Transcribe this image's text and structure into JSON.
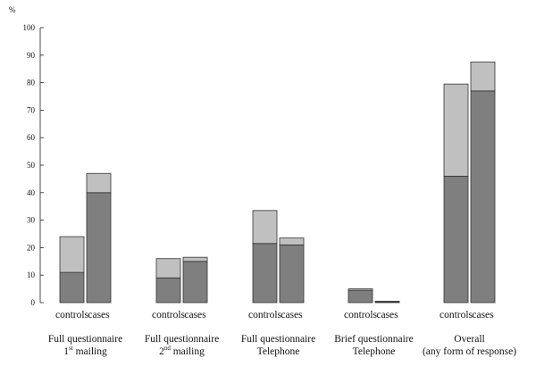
{
  "chart_data": {
    "type": "bar",
    "stacked": true,
    "ylabel": "%",
    "ylim": [
      0,
      100
    ],
    "yticks": [
      0,
      10,
      20,
      30,
      40,
      50,
      60,
      70,
      80,
      90,
      100
    ],
    "grid": false,
    "colors": {
      "lower": "#7f7f7f",
      "upper": "#c0c0c0",
      "edge": "#333333"
    },
    "groups": [
      {
        "label_lines": [
          {
            "text": "Full questionnaire"
          },
          {
            "text": "1",
            "sup": "st",
            "tail": " mailing"
          }
        ],
        "bars": [
          {
            "label": "controls",
            "lower": 11,
            "total": 24
          },
          {
            "label": "cases",
            "lower": 40,
            "total": 47
          }
        ]
      },
      {
        "label_lines": [
          {
            "text": "Full questionnaire"
          },
          {
            "text": "2",
            "sup": "nd",
            "tail": " mailing"
          }
        ],
        "bars": [
          {
            "label": "controls",
            "lower": 9,
            "total": 16
          },
          {
            "label": "cases",
            "lower": 15,
            "total": 16.5
          }
        ]
      },
      {
        "label_lines": [
          {
            "text": "Full questionnaire"
          },
          {
            "text": "Telephone"
          }
        ],
        "bars": [
          {
            "label": "controls",
            "lower": 21.5,
            "total": 33.5
          },
          {
            "label": "cases",
            "lower": 21,
            "total": 23.5
          }
        ]
      },
      {
        "label_lines": [
          {
            "text": "Brief questionnaire"
          },
          {
            "text": "Telephone"
          }
        ],
        "bars": [
          {
            "label": "controls",
            "lower": 4.5,
            "total": 5
          },
          {
            "label": "cases",
            "lower": 0.3,
            "total": 0.5
          }
        ]
      },
      {
        "label_lines": [
          {
            "text": "Overall"
          },
          {
            "text": "(any form of response)"
          }
        ],
        "bars": [
          {
            "label": "controls",
            "lower": 46,
            "total": 79.5
          },
          {
            "label": "cases",
            "lower": 77,
            "total": 87.5
          }
        ]
      }
    ]
  }
}
